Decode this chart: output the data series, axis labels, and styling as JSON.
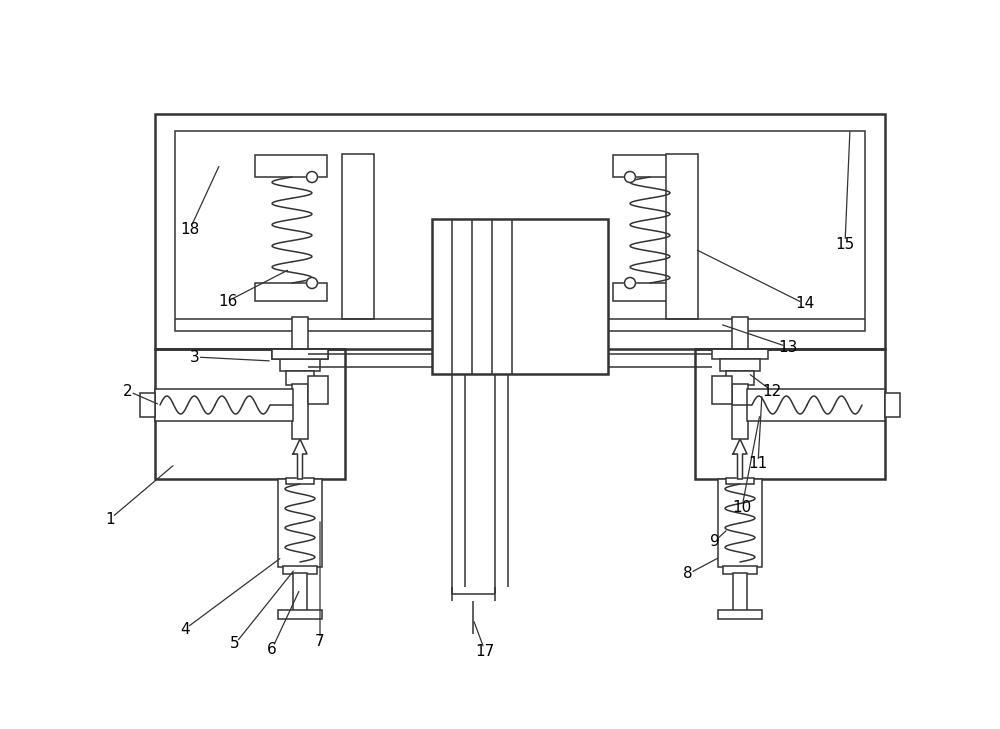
{
  "bg_color": "#ffffff",
  "line_color": "#333333",
  "lw": 1.1,
  "lw2": 1.8,
  "fig_width": 10.0,
  "fig_height": 7.29,
  "annotations": [
    [
      "1",
      1.1,
      2.1
    ],
    [
      "2",
      1.28,
      3.38
    ],
    [
      "3",
      1.95,
      3.72
    ],
    [
      "4",
      1.85,
      1.0
    ],
    [
      "5",
      2.35,
      0.85
    ],
    [
      "6",
      2.72,
      0.8
    ],
    [
      "7",
      3.2,
      0.88
    ],
    [
      "8",
      6.88,
      1.55
    ],
    [
      "9",
      7.15,
      1.88
    ],
    [
      "10",
      7.42,
      2.22
    ],
    [
      "11",
      7.58,
      2.65
    ],
    [
      "12",
      7.72,
      3.38
    ],
    [
      "13",
      7.88,
      3.82
    ],
    [
      "14",
      8.05,
      4.25
    ],
    [
      "15",
      8.45,
      4.85
    ],
    [
      "16",
      2.28,
      4.28
    ],
    [
      "17",
      4.85,
      0.78
    ],
    [
      "18",
      1.9,
      5.0
    ]
  ]
}
